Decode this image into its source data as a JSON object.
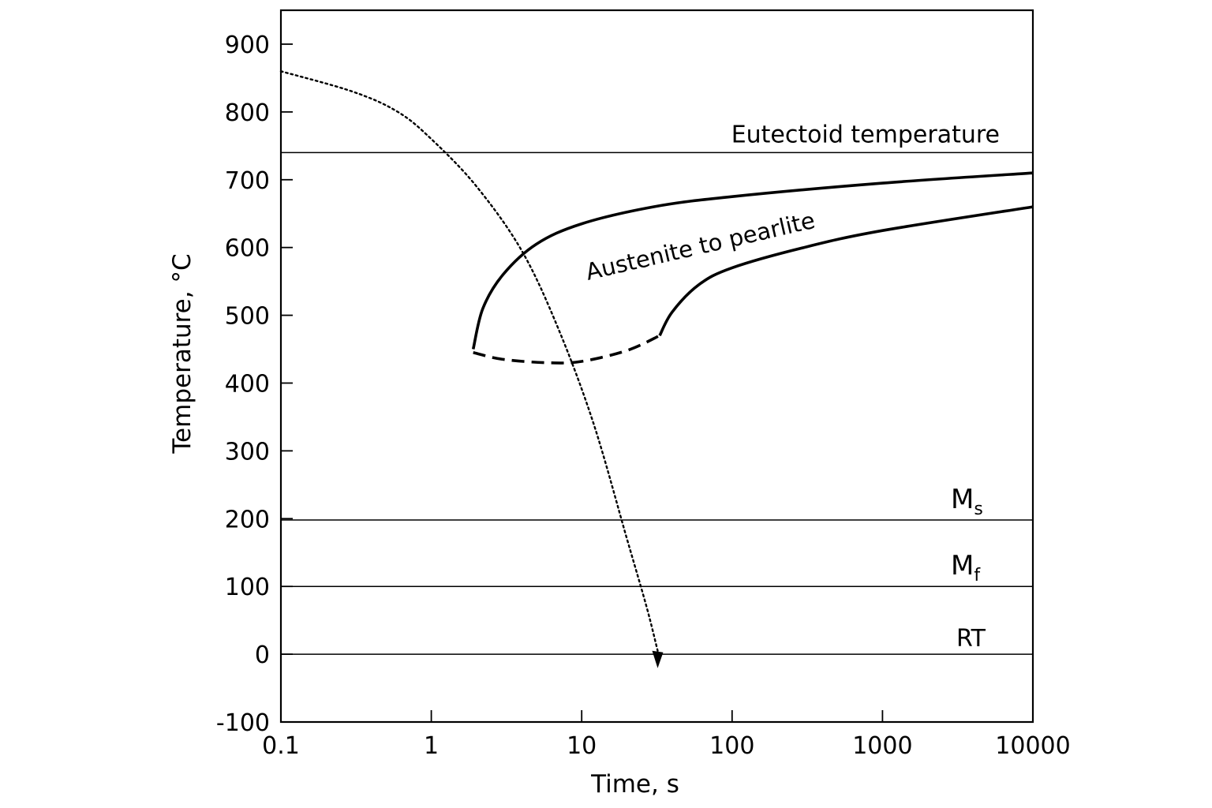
{
  "chart_data": {
    "type": "line",
    "xlabel": "Time, s",
    "ylabel": "Temperature, °C",
    "x_scale": "log",
    "xlim": [
      0.1,
      10000
    ],
    "ylim": [
      -100,
      950
    ],
    "x_ticks": [
      0.1,
      1,
      10,
      100,
      1000,
      10000
    ],
    "x_tick_labels": [
      "0.1",
      "1",
      "10",
      "100",
      "1000",
      "10000"
    ],
    "y_ticks": [
      -100,
      0,
      100,
      200,
      300,
      400,
      500,
      600,
      700,
      800,
      900
    ],
    "y_tick_labels": [
      "-100",
      "0",
      "100",
      "200",
      "300",
      "400",
      "500",
      "600",
      "700",
      "800",
      "900"
    ],
    "grid": false,
    "reference_lines": [
      {
        "y": 740,
        "label": "Eutectoid temperature"
      },
      {
        "y": 198,
        "label_main": "M",
        "label_sub": "s"
      },
      {
        "y": 100,
        "label_main": "M",
        "label_sub": "f"
      },
      {
        "y": 0,
        "label": "RT"
      }
    ],
    "transformation_region": {
      "label": "Austenite to pearlite",
      "start_curve": {
        "x": [
          1.9,
          2.2,
          3,
          5,
          10,
          30,
          100,
          1000,
          10000
        ],
        "y": [
          450,
          510,
          560,
          605,
          635,
          660,
          675,
          695,
          710
        ]
      },
      "finish_curve": {
        "x": [
          33,
          40,
          60,
          100,
          300,
          1000,
          10000
        ],
        "y": [
          470,
          505,
          545,
          570,
          600,
          625,
          660
        ]
      },
      "nose_boundary": {
        "style": "dashed",
        "x": [
          1.9,
          3,
          6,
          10,
          20,
          33
        ],
        "y": [
          445,
          435,
          430,
          432,
          448,
          470
        ]
      }
    },
    "cooling_curve": {
      "style": "dotted",
      "arrow": "end",
      "x": [
        0.1,
        0.3,
        0.6,
        1,
        2,
        4,
        7,
        12,
        20,
        27,
        32
      ],
      "y": [
        860,
        830,
        800,
        760,
        690,
        595,
        480,
        340,
        170,
        70,
        5
      ]
    }
  }
}
